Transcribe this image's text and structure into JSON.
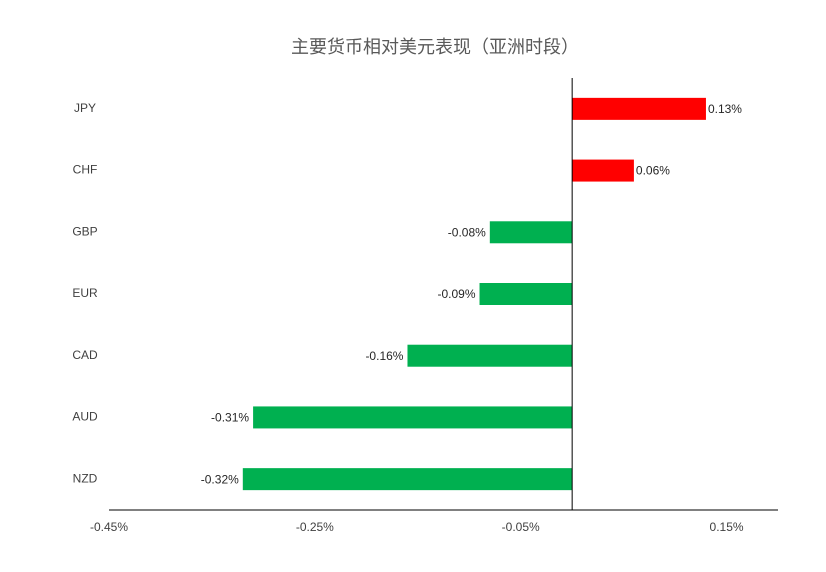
{
  "chart_data": {
    "type": "hbar",
    "title": "主要货币相对美元表现（亚洲时段）",
    "categories": [
      "JPY",
      "CHF",
      "GBP",
      "EUR",
      "CAD",
      "AUD",
      "NZD"
    ],
    "values": [
      0.13,
      0.06,
      -0.08,
      -0.09,
      -0.16,
      -0.31,
      -0.32
    ],
    "value_labels": [
      "0.13%",
      "0.06%",
      "-0.08%",
      "-0.09%",
      "-0.16%",
      "-0.31%",
      "-0.32%"
    ],
    "colors": [
      "#ff0000",
      "#ff0000",
      "#00b050",
      "#00b050",
      "#00b050",
      "#00b050",
      "#00b050"
    ],
    "xlim": [
      -0.45,
      0.2
    ],
    "xticks": [
      {
        "value": -0.45,
        "label": "-0.45%"
      },
      {
        "value": -0.25,
        "label": "-0.25%"
      },
      {
        "value": -0.05,
        "label": "-0.05%"
      },
      {
        "value": 0.15,
        "label": "0.15%"
      }
    ],
    "grid": false
  }
}
